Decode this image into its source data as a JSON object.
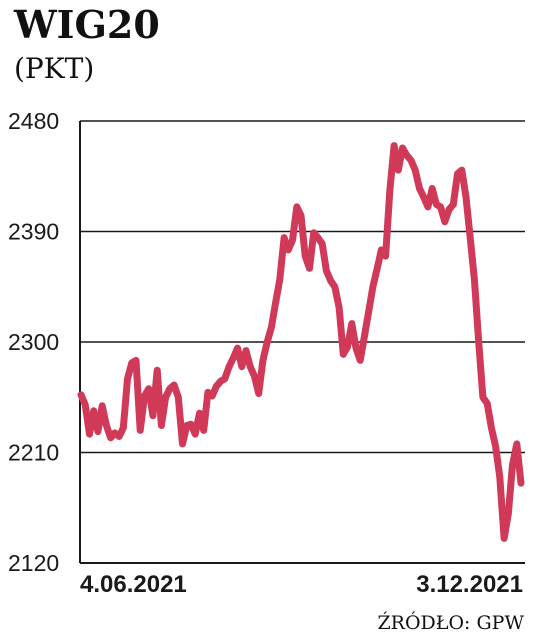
{
  "header": {
    "title": "WIG20",
    "subtitle": "(PKT)"
  },
  "footer": {
    "source": "ŹRÓDŁO: GPW"
  },
  "chart_data": {
    "type": "line",
    "title": "WIG20",
    "subtitle": "(PKT)",
    "ylim": [
      2120,
      2480
    ],
    "yticks": [
      2120,
      2210,
      2300,
      2390,
      2480
    ],
    "ytick_labels": [
      "2120",
      "2210",
      "2300",
      "2390",
      "2480"
    ],
    "xtick_labels": [
      "4.06.2021",
      "3.12.2021"
    ],
    "grid": true,
    "line_color": "#d03a58",
    "series": [
      {
        "values": [
          2257,
          2249,
          2225,
          2244,
          2227,
          2248,
          2232,
          2222,
          2226,
          2223,
          2230,
          2270,
          2283,
          2285,
          2228,
          2256,
          2262,
          2240,
          2277,
          2232,
          2255,
          2262,
          2265,
          2255,
          2217,
          2232,
          2233,
          2225,
          2242,
          2228,
          2259,
          2256,
          2264,
          2268,
          2270,
          2280,
          2287,
          2295,
          2280,
          2293,
          2280,
          2272,
          2258,
          2285,
          2300,
          2312,
          2332,
          2351,
          2385,
          2375,
          2383,
          2410,
          2403,
          2370,
          2360,
          2389,
          2385,
          2380,
          2358,
          2350,
          2345,
          2328,
          2290,
          2296,
          2315,
          2295,
          2285,
          2305,
          2325,
          2345,
          2360,
          2375,
          2370,
          2423,
          2460,
          2440,
          2458,
          2452,
          2448,
          2440,
          2425,
          2418,
          2410,
          2425,
          2412,
          2410,
          2398,
          2408,
          2412,
          2437,
          2440,
          2418,
          2385,
          2350,
          2300,
          2255,
          2250,
          2230,
          2215,
          2190,
          2140,
          2160,
          2200,
          2217,
          2185
        ]
      }
    ]
  }
}
